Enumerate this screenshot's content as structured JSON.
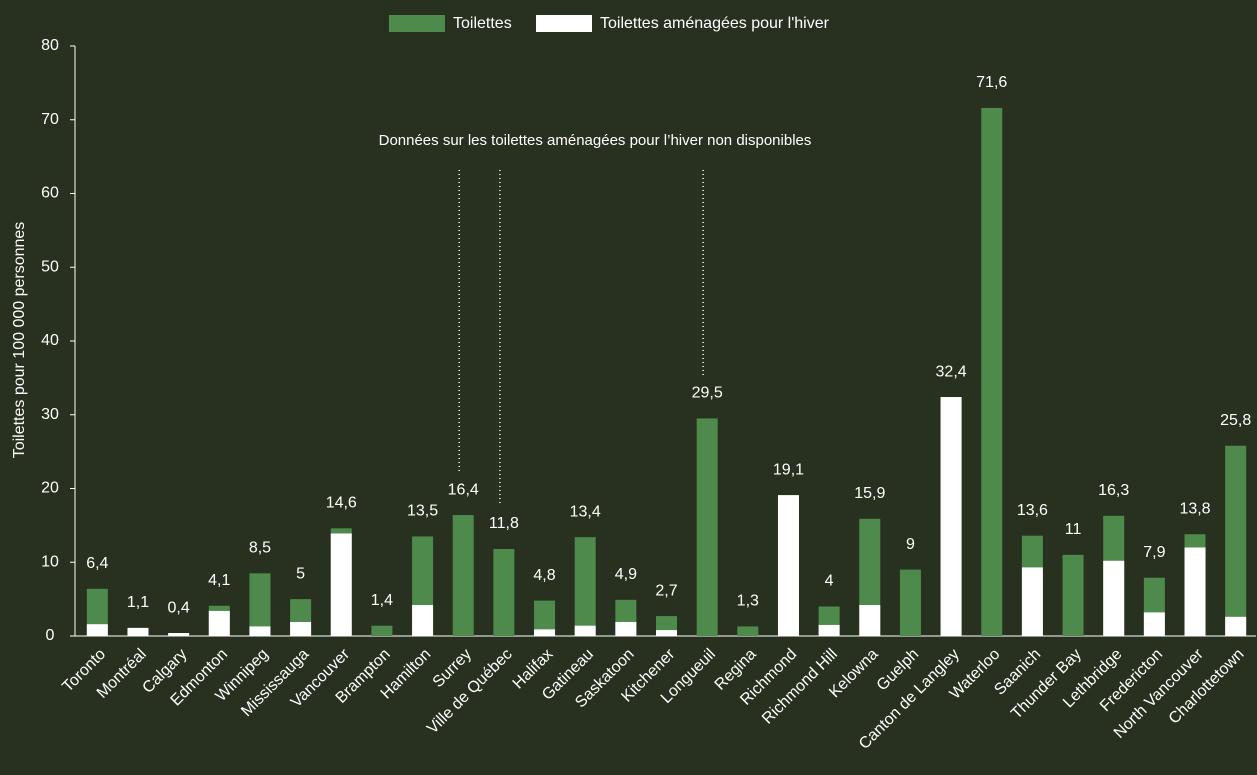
{
  "chart_data": {
    "type": "bar",
    "y_label": "Toilettes pour 100 000 personnes",
    "annotation": "Données sur les toilettes aménagées pour l’hiver non disponibles",
    "categories": [
      "Toronto",
      "Montréal",
      "Calgary",
      "Edmonton",
      "Winnipeg",
      "Mississauga",
      "Vancouver",
      "Brampton",
      "Hamilton",
      "Surrey",
      "Ville de Québec",
      "Halifax",
      "Gatineau",
      "Saskatoon",
      "Kitchener",
      "Longueuil",
      "Regina",
      "Richmond",
      "Richmond Hill",
      "Kelowna",
      "Guelph",
      "Canton de Langley",
      "Waterloo",
      "Saanich",
      "Thunder Bay",
      "Lethbridge",
      "Fredericton",
      "North Vancouver",
      "Charlottetown"
    ],
    "series": [
      {
        "name": "Toilettes",
        "color": "#4e8a4c",
        "values": [
          6.4,
          1.1,
          0.4,
          4.1,
          8.5,
          5,
          14.6,
          1.4,
          13.5,
          16.4,
          11.8,
          4.8,
          13.4,
          4.9,
          2.7,
          29.5,
          1.3,
          19.1,
          4,
          15.9,
          9,
          32.4,
          71.6,
          13.6,
          11,
          16.3,
          7.9,
          13.8,
          25.8
        ],
        "value_labels": [
          "6,4",
          "1,1",
          "0,4",
          "4,1",
          "8,5",
          "5",
          "14,6",
          "1,4",
          "13,5",
          "16,4",
          "11,8",
          "4,8",
          "13,4",
          "4,9",
          "2,7",
          "29,5",
          "1,3",
          "19,1",
          "4",
          "15,9",
          "9",
          "32,4",
          "71,6",
          "13,6",
          "11",
          "16,3",
          "7,9",
          "13,8",
          "25,8"
        ]
      },
      {
        "name": "Toilettes aménagées pour l'hiver",
        "color": "#ffffff",
        "values": [
          1.6,
          1.1,
          0.4,
          3.4,
          1.3,
          1.9,
          13.9,
          0,
          4.2,
          null,
          null,
          0.9,
          1.4,
          1.9,
          0.8,
          null,
          0,
          19.1,
          1.5,
          4.2,
          0,
          32.4,
          0,
          9.3,
          0,
          10.2,
          3.2,
          12,
          2.6
        ]
      }
    ],
    "ylim": [
      0,
      80
    ],
    "yticks": [
      0,
      10,
      20,
      30,
      40,
      50,
      60,
      70,
      80
    ]
  }
}
